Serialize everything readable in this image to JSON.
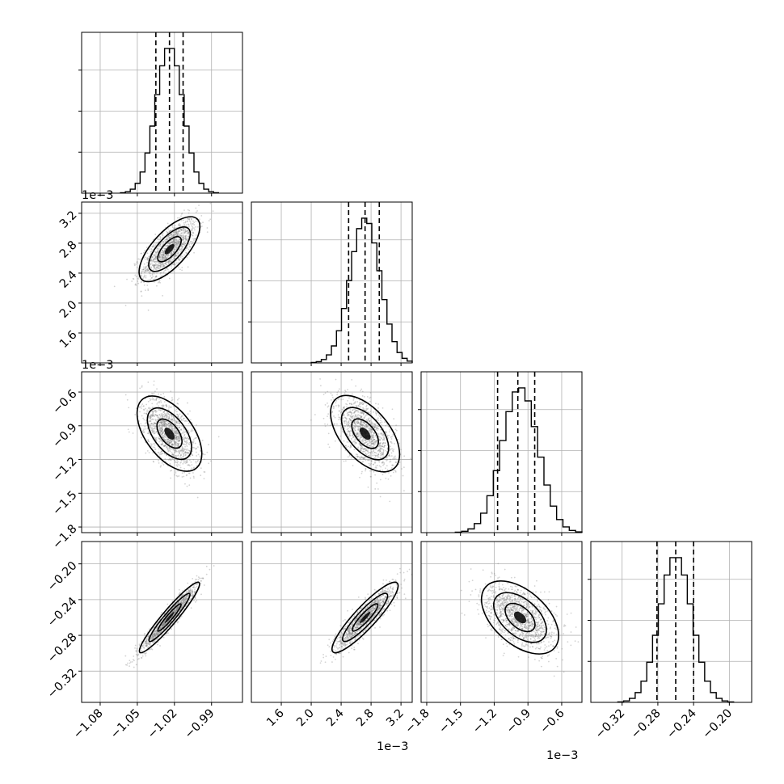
{
  "chart_data": {
    "type": "corner",
    "parameters": 4,
    "diagonal": [
      {
        "range": [
          -1.095,
          -0.965
        ],
        "bins_center": -1.024,
        "bins_sd": 0.011,
        "quantiles": [
          -1.035,
          -1.024,
          -1.013
        ]
      },
      {
        "range": [
          1.2,
          3.35
        ],
        "bins_center": 2.72,
        "bins_sd": 0.2,
        "quantiles": [
          2.5,
          2.72,
          2.91
        ]
      },
      {
        "range": [
          -1.85,
          -0.42
        ],
        "bins_center": -0.97,
        "bins_sd": 0.16,
        "quantiles": [
          -1.17,
          -0.99,
          -0.84
        ]
      },
      {
        "range": [
          -0.355,
          -0.175
        ],
        "bins_center": -0.26,
        "bins_sd": 0.018,
        "quantiles": [
          -0.281,
          -0.26,
          -0.24
        ]
      }
    ],
    "x_ticks": [
      {
        "values": [
          -1.08,
          -1.05,
          -1.02,
          -0.99
        ],
        "labels": [
          "−1.08",
          "−1.05",
          "−1.02",
          "−0.99"
        ]
      },
      {
        "values": [
          1.6,
          2.0,
          2.4,
          2.8,
          3.2
        ],
        "labels": [
          "1.6",
          "2.0",
          "2.4",
          "2.8",
          "3.2"
        ]
      },
      {
        "values": [
          -1.8,
          -1.5,
          -1.2,
          -0.9,
          -0.6
        ],
        "labels": [
          "−1.8",
          "−1.5",
          "−1.2",
          "−0.9",
          "−0.6"
        ]
      },
      {
        "values": [
          -0.32,
          -0.28,
          -0.24,
          -0.2
        ],
        "labels": [
          "−0.32",
          "−0.28",
          "−0.24",
          "−0.20"
        ]
      }
    ],
    "y_ticks": {
      "1": {
        "values": [
          1.6,
          2.0,
          2.4,
          2.8,
          3.2
        ],
        "labels": [
          "1.6",
          "2.0",
          "2.4",
          "2.8",
          "3.2"
        ]
      },
      "2": {
        "values": [
          -1.8,
          -1.5,
          -1.2,
          -0.9,
          -0.6
        ],
        "labels": [
          "−1.8",
          "−1.5",
          "−1.2",
          "−0.9",
          "−0.6"
        ]
      },
      "3": {
        "values": [
          -0.32,
          -0.28,
          -0.24,
          -0.2
        ],
        "labels": [
          "−0.32",
          "−0.28",
          "−0.24",
          "−0.20"
        ]
      }
    },
    "offset_labels": {
      "row1_y": "1e−3",
      "row2_y": "1e−3",
      "col1_x": "1e−3",
      "col2_x": "1e−3"
    },
    "correlations": {
      "1,0": 0.7,
      "2,0": -0.55,
      "2,1": -0.55,
      "3,0": 0.95,
      "3,1": 0.9,
      "3,2": -0.5
    },
    "grid": true,
    "colors": {
      "points": "#808080",
      "density": "#000000",
      "hist": "#000000",
      "grid": "#b0b0b0"
    }
  }
}
